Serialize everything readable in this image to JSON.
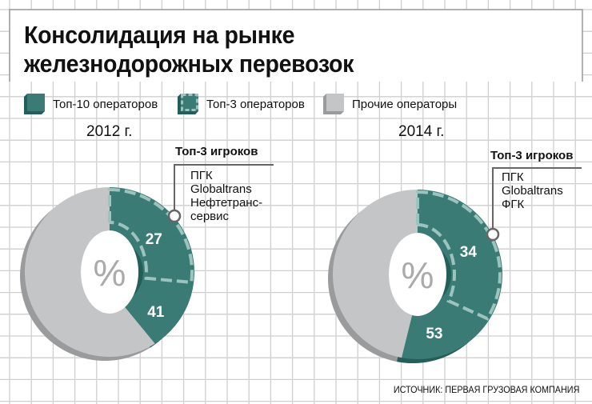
{
  "title_lines": [
    "Консолидация на рынке",
    "железнодорожных перевозок"
  ],
  "legend": [
    {
      "label": "Топ-10 операторов",
      "color": "#3a7b76"
    },
    {
      "label": "Топ-3 операторов",
      "color": "#3a7b76",
      "style": "dashed"
    },
    {
      "label": "Прочие операторы",
      "color": "#c4c5c7"
    }
  ],
  "source": "ИСТОЧНИК: ПЕРВАЯ ГРУЗОВАЯ КОМПАНИЯ",
  "center_label": "%",
  "chart_data": [
    {
      "type": "pie",
      "title": "2012 г.",
      "unit": "%",
      "top10": 41,
      "top3": 27,
      "others_color": "#c4c5c7",
      "callout": {
        "title": "Топ-3 игроков",
        "items": [
          "ПГК",
          "Globaltrans",
          "Нефтетранс-",
          "сервис"
        ]
      }
    },
    {
      "type": "pie",
      "title": "2014 г.",
      "unit": "%",
      "top10": 53,
      "top3": 34,
      "others_color": "#c4c5c7",
      "callout": {
        "title": "Топ-3 игроков",
        "items": [
          "ПГК",
          "Globaltrans",
          "ФГК"
        ]
      }
    }
  ]
}
